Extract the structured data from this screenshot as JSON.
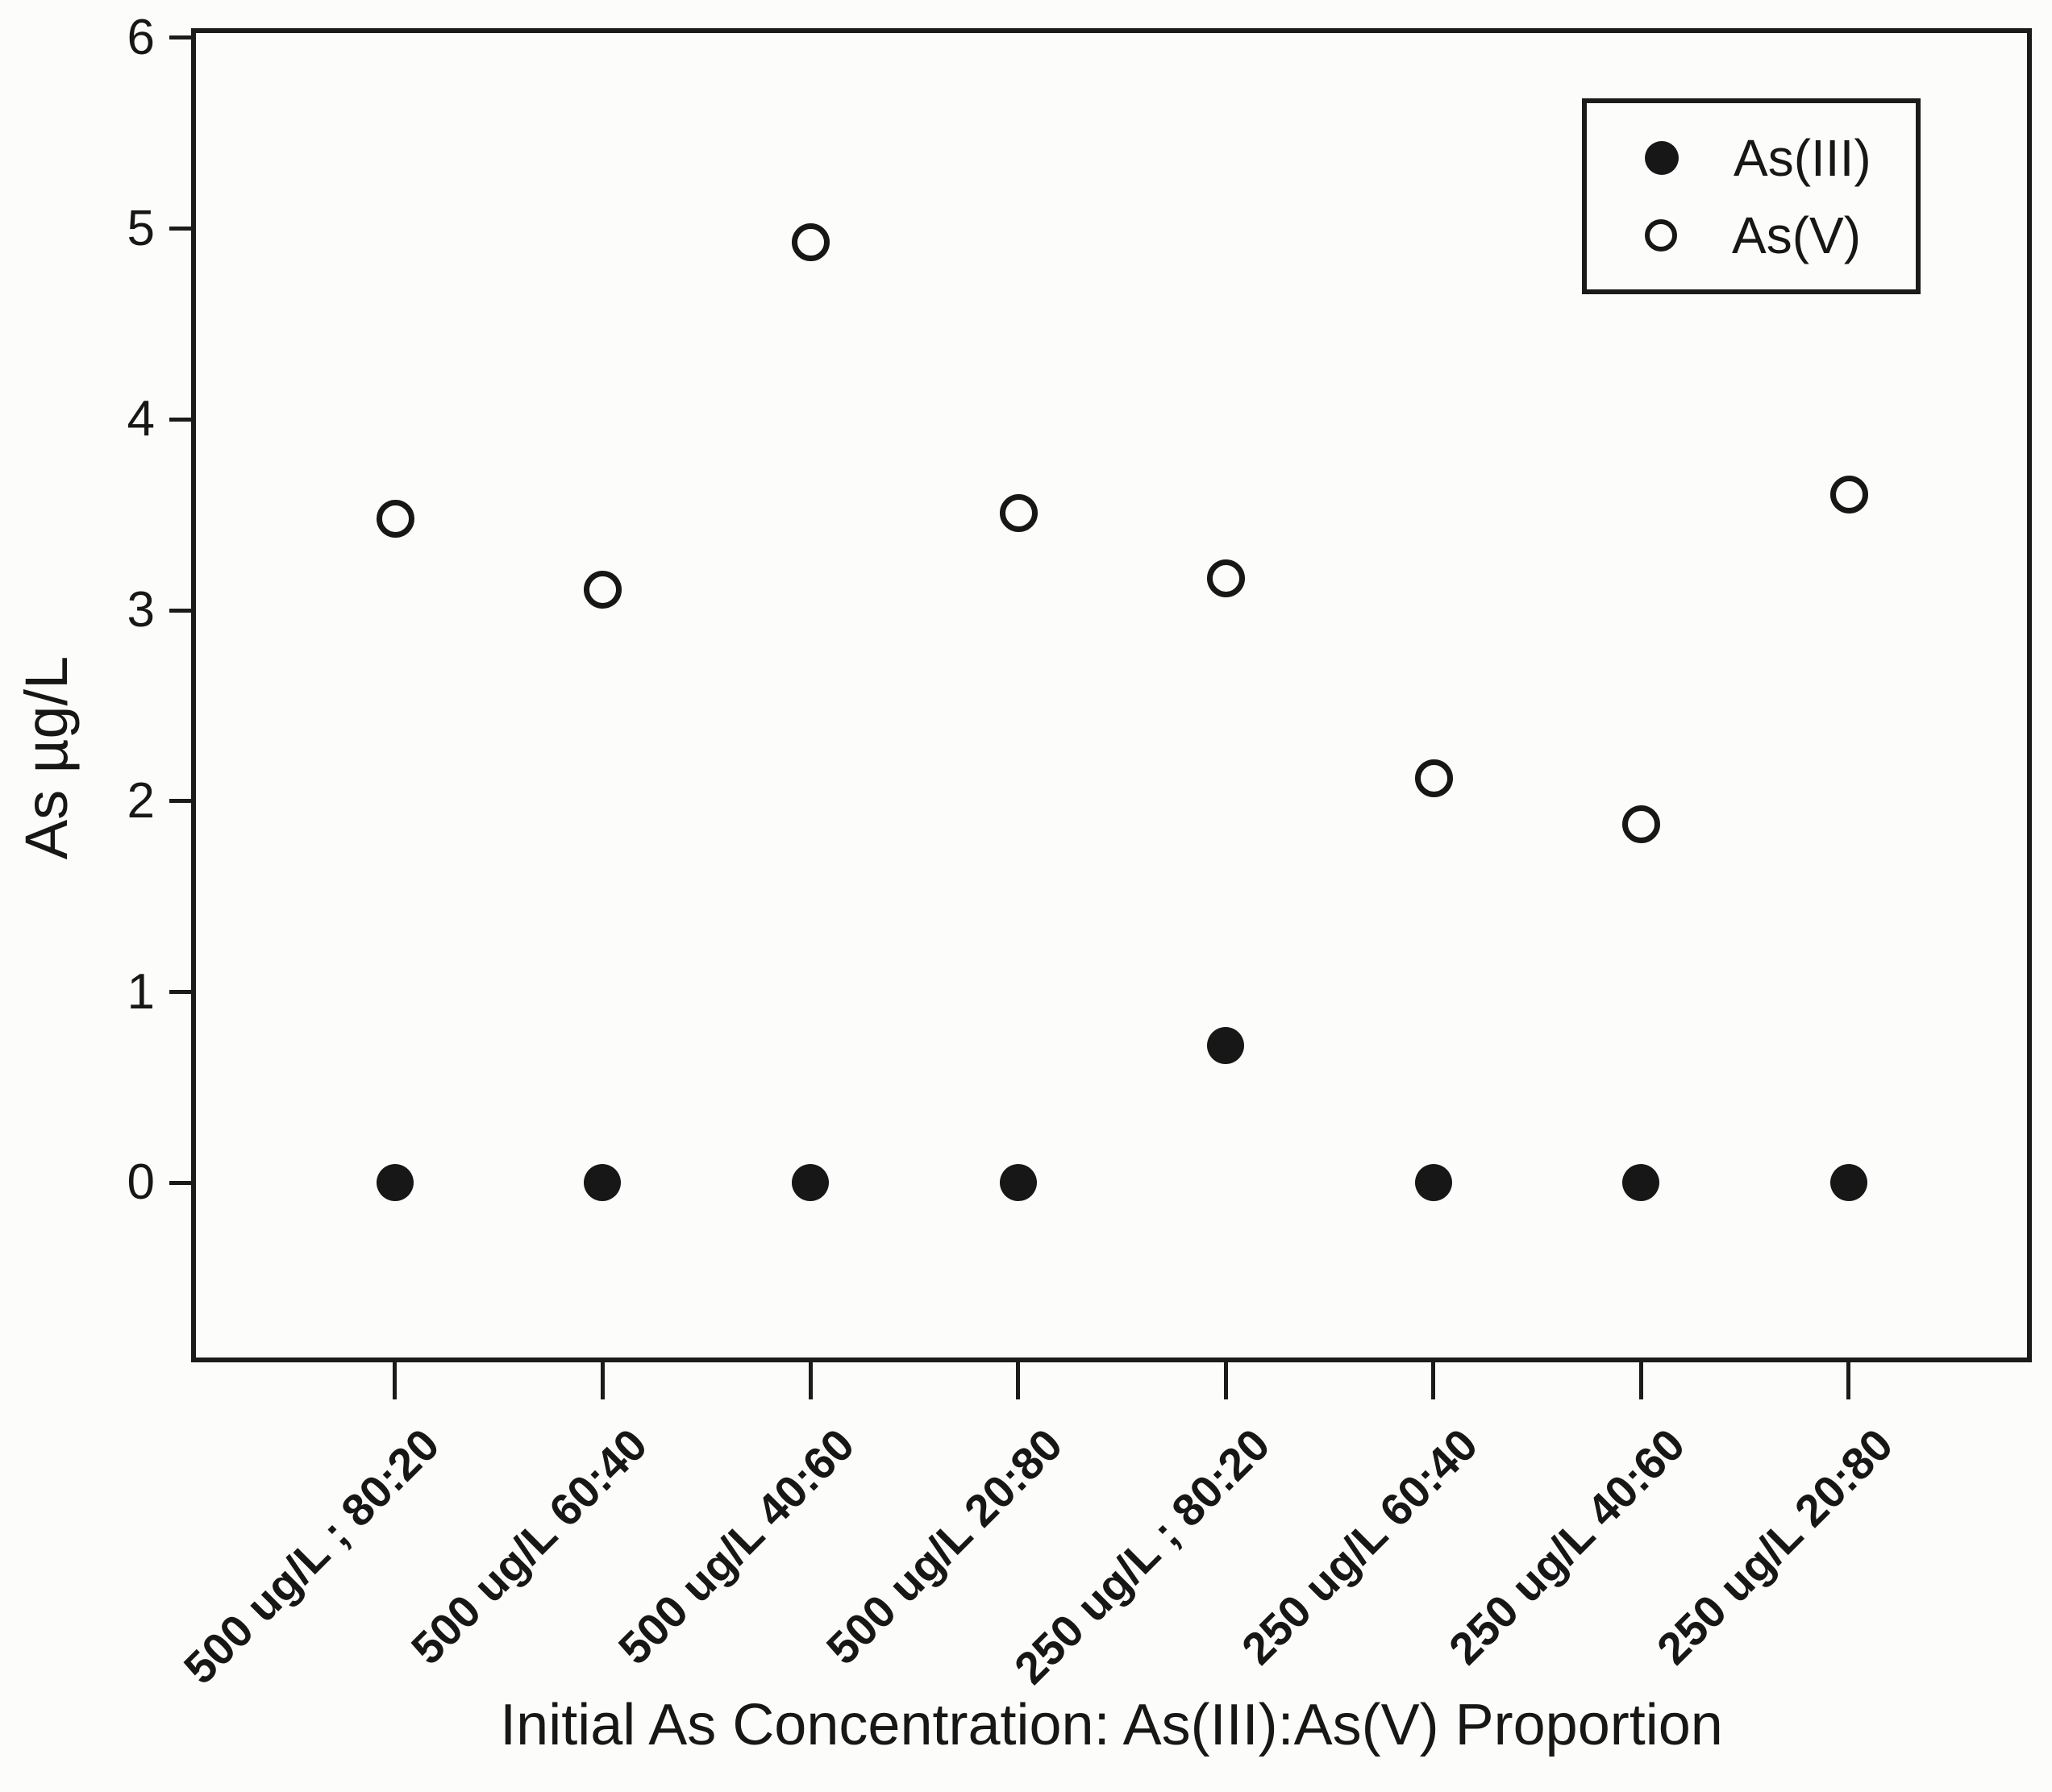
{
  "chart_data": {
    "type": "scatter",
    "title": "",
    "xlabel": "Initial As Concentration: As(III):As(V) Proportion",
    "ylabel": "As µg/L",
    "categories": [
      "500 ug/L ; 80:20",
      "500 ug/L 60:40",
      "500 ug/L 40:60",
      "500 ug/L 20:80",
      "250 ug/L ; 80:20",
      "250 ug/L 60:40",
      "250 ug/L 40:60",
      "250 ug/L 20:80"
    ],
    "series": [
      {
        "name": "As(III)",
        "marker": "filled-circle",
        "color": "#171717",
        "values": [
          0,
          0,
          0,
          0,
          0.72,
          0,
          0,
          0
        ]
      },
      {
        "name": "As(V)",
        "marker": "open-circle",
        "color": "#171717",
        "values": [
          3.48,
          3.11,
          4.93,
          3.51,
          3.17,
          2.12,
          1.88,
          3.61
        ]
      }
    ],
    "yticks": [
      0,
      1,
      2,
      3,
      4,
      5,
      6
    ],
    "ylim": [
      -0.94,
      6.05
    ],
    "grid": false,
    "legend_position": "top-right",
    "background": "#fcfcfa",
    "ink_color": "#171717"
  }
}
